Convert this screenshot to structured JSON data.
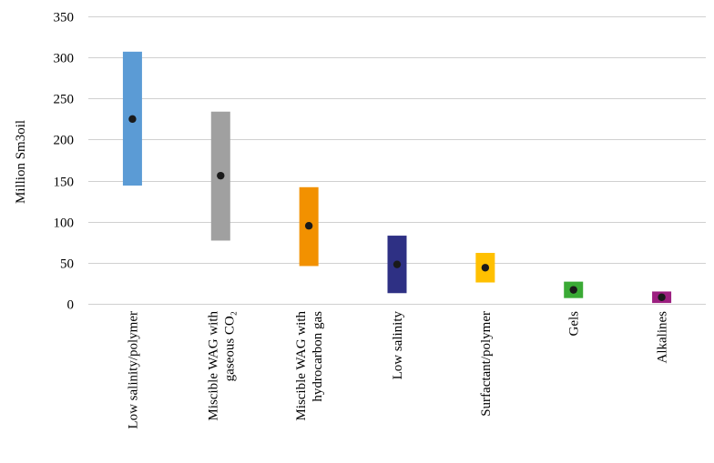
{
  "chart_data": {
    "type": "range-bar",
    "ylabel": "Million Sm3oil",
    "ylim": [
      0,
      350
    ],
    "yticks": [
      0,
      50,
      100,
      150,
      200,
      250,
      300,
      350
    ],
    "grid": true,
    "categories": [
      {
        "lines": [
          "Low salinity/polymer"
        ],
        "low": 144,
        "high": 307,
        "point": 225,
        "color": "#5b9bd5"
      },
      {
        "lines": [
          "Miscible WAG with",
          "gaseous CO₂"
        ],
        "low": 77,
        "high": 234,
        "point": 156,
        "color": "#a0a0a0"
      },
      {
        "lines": [
          "Miscible WAG with",
          "hydrocarbon gas"
        ],
        "low": 46,
        "high": 142,
        "point": 95,
        "color": "#f29100"
      },
      {
        "lines": [
          "Low salinity"
        ],
        "low": 13,
        "high": 83,
        "point": 48,
        "color": "#2e3084"
      },
      {
        "lines": [
          "Surfactant/polymer"
        ],
        "low": 26,
        "high": 62,
        "point": 44,
        "color": "#ffc000"
      },
      {
        "lines": [
          "Gels"
        ],
        "low": 7,
        "high": 27,
        "point": 17,
        "color": "#3aaa35"
      },
      {
        "lines": [
          "Alkalines"
        ],
        "low": 1,
        "high": 15,
        "point": 8,
        "color": "#9c1f80"
      }
    ],
    "marker_color": "#1a1a1a",
    "grid_color": "#d0d0d0"
  }
}
